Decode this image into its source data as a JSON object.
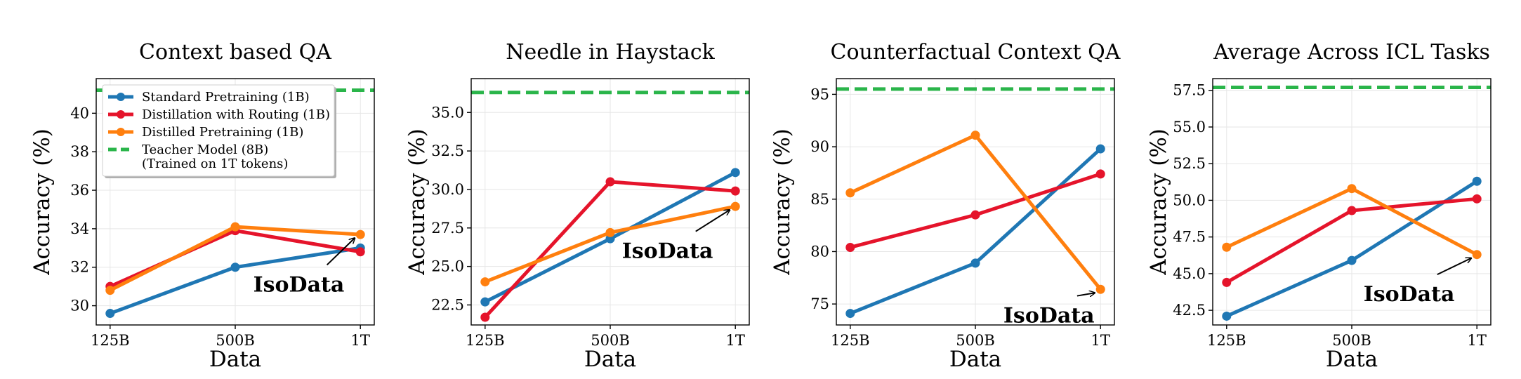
{
  "colors": {
    "standard": "#1f77b4",
    "routing": "#e5142b",
    "distilled": "#ff7f0e",
    "teacher": "#2ab54a",
    "grid": "#e6e6e6"
  },
  "legend": {
    "placement": "upper-left of first panel",
    "entries": [
      {
        "key": "standard",
        "label": "Standard Pretraining (1B)"
      },
      {
        "key": "routing",
        "label": "Distillation with Routing (1B)"
      },
      {
        "key": "distilled",
        "label": "Distilled Pretraining (1B)"
      },
      {
        "key": "teacher",
        "label": "Teacher Model (8B)",
        "label2": "(Trained on 1T tokens)"
      }
    ]
  },
  "chart_data": [
    {
      "type": "line",
      "title": "Context based QA",
      "xlabel": "Data",
      "ylabel": "Accuracy (%)",
      "categories": [
        "125B",
        "500B",
        "1T"
      ],
      "ylim": [
        29.0,
        41.8
      ],
      "yticks": [
        "30",
        "32",
        "34",
        "36",
        "38",
        "40"
      ],
      "ytick_values": [
        30,
        32,
        34,
        36,
        38,
        40
      ],
      "grid": true,
      "series": [
        {
          "key": "standard",
          "values": [
            29.6,
            32.0,
            33.0
          ]
        },
        {
          "key": "routing",
          "values": [
            31.0,
            33.9,
            32.8
          ]
        },
        {
          "key": "distilled",
          "values": [
            30.8,
            34.1,
            33.7
          ]
        }
      ],
      "teacher": 41.2,
      "annotation": {
        "text": "IsoData",
        "point_x": 2,
        "point_y": 33.7,
        "text_x": 1.2,
        "text_y": 31.1
      }
    },
    {
      "type": "line",
      "title": "Needle in Haystack",
      "xlabel": "Data",
      "ylabel": "Accuracy (%)",
      "categories": [
        "125B",
        "500B",
        "1T"
      ],
      "ylim": [
        21.2,
        37.2
      ],
      "yticks": [
        "22.5",
        "25.0",
        "27.5",
        "30.0",
        "32.5",
        "35.0"
      ],
      "ytick_values": [
        22.5,
        25.0,
        27.5,
        30.0,
        32.5,
        35.0
      ],
      "grid": true,
      "series": [
        {
          "key": "standard",
          "values": [
            22.7,
            26.8,
            31.1
          ]
        },
        {
          "key": "routing",
          "values": [
            21.7,
            30.5,
            29.9
          ]
        },
        {
          "key": "distilled",
          "values": [
            24.0,
            27.2,
            28.9
          ]
        }
      ],
      "teacher": 36.3,
      "annotation": {
        "text": "IsoData",
        "point_x": 2,
        "point_y": 28.9,
        "text_x": 1.15,
        "text_y": 26.0
      }
    },
    {
      "type": "line",
      "title": "Counterfactual Context QA",
      "xlabel": "Data",
      "ylabel": "Accuracy (%)",
      "categories": [
        "125B",
        "500B",
        "1T"
      ],
      "ylim": [
        73.0,
        96.5
      ],
      "yticks": [
        "75",
        "80",
        "85",
        "90",
        "95"
      ],
      "ytick_values": [
        75,
        80,
        85,
        90,
        95
      ],
      "grid": true,
      "series": [
        {
          "key": "standard",
          "values": [
            74.1,
            78.9,
            89.8
          ]
        },
        {
          "key": "routing",
          "values": [
            80.4,
            83.5,
            87.4
          ]
        },
        {
          "key": "distilled",
          "values": [
            85.6,
            91.1,
            76.4
          ]
        }
      ],
      "teacher": 95.5,
      "annotation": {
        "text": "IsoData",
        "point_x": 2,
        "point_y": 76.4,
        "text_x": 1.28,
        "text_y": 73.9
      }
    },
    {
      "type": "line",
      "title": "Average Across ICL Tasks",
      "xlabel": "Data",
      "ylabel": "Accuracy (%)",
      "categories": [
        "125B",
        "500B",
        "1T"
      ],
      "ylim": [
        41.5,
        58.3
      ],
      "yticks": [
        "42.5",
        "45.0",
        "47.5",
        "50.0",
        "52.5",
        "55.0",
        "57.5"
      ],
      "ytick_values": [
        42.5,
        45.0,
        47.5,
        50.0,
        52.5,
        55.0,
        57.5
      ],
      "grid": true,
      "series": [
        {
          "key": "standard",
          "values": [
            42.1,
            45.9,
            51.3
          ]
        },
        {
          "key": "routing",
          "values": [
            44.4,
            49.3,
            50.1
          ]
        },
        {
          "key": "distilled",
          "values": [
            46.8,
            50.8,
            46.3
          ]
        }
      ],
      "teacher": 57.7,
      "annotation": {
        "text": "IsoData",
        "point_x": 2,
        "point_y": 46.3,
        "text_x": 1.15,
        "text_y": 43.6
      }
    }
  ]
}
